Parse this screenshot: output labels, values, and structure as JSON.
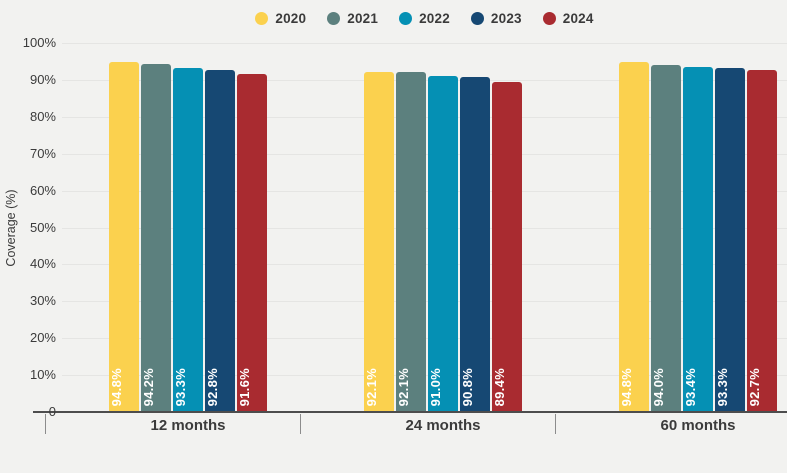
{
  "chart_data": {
    "type": "bar",
    "title": "",
    "categories": [
      "12 months",
      "24 months",
      "60 months"
    ],
    "series": [
      {
        "name": "2020",
        "color": "#fbd14e",
        "values": [
          94.8,
          92.1,
          94.8
        ]
      },
      {
        "name": "2021",
        "color": "#5c807e",
        "values": [
          94.2,
          92.1,
          94.0
        ]
      },
      {
        "name": "2022",
        "color": "#0590b4",
        "values": [
          93.3,
          91.0,
          93.4
        ]
      },
      {
        "name": "2023",
        "color": "#164873",
        "values": [
          92.8,
          90.8,
          93.3
        ]
      },
      {
        "name": "2024",
        "color": "#a92b30",
        "values": [
          91.6,
          89.4,
          92.7
        ]
      }
    ],
    "xlabel": "",
    "ylabel": "Coverage (%)",
    "ylim": [
      0,
      100
    ],
    "y_tick_labels": [
      "0",
      "10%",
      "20%",
      "30%",
      "40%",
      "50%",
      "60%",
      "70%",
      "80%",
      "90%",
      "100%"
    ],
    "grid": true,
    "legend_position": "top",
    "value_label_suffix": "%"
  },
  "colors": {
    "background": "#f2f2f0",
    "gridline": "#e5e5e3",
    "axis_line": "#4d4d4d",
    "text": "#3b3b3b",
    "bar_value_text": "#ffffff"
  }
}
